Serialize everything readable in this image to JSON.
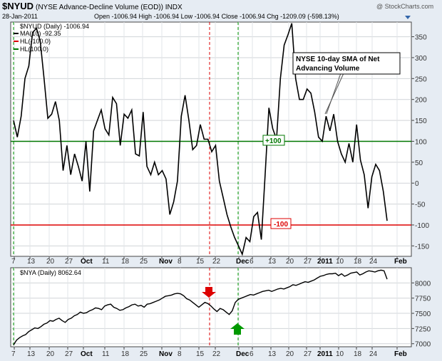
{
  "header": {
    "symbol": "$NYUD",
    "description": "(NYSE Advance-Decline Volume (EOD)) INDX",
    "watermark": "@ StockCharts.com",
    "date": "28-Jan-2011",
    "quote": "Open -1006.94 High -1006.94 Low -1006.94 Close -1006.94 Chg -1209.09 (-598.13%)"
  },
  "top_legend": {
    "main": "$NYUD (Daily) -1006.94",
    "ma": "MA(10) -92.35",
    "hl_red": "HL(-100.0)",
    "hl_green": "HL(100.0)"
  },
  "bottom_legend": {
    "main": "$NYA (Daily) 8062.64"
  },
  "annotation": {
    "line1": "NYSE 10-day SMA of Net",
    "line2": "Advancing Volume"
  },
  "labels": {
    "plus100": "+100",
    "minus100": "-100"
  },
  "colors": {
    "background": "#e6ecf3",
    "panel": "#ffffff",
    "series": "#000000",
    "hl_green": "#007700",
    "hl_red": "#dd0000",
    "arrow_red": "#dd0000",
    "arrow_green": "#009900"
  },
  "chart_data": [
    {
      "type": "line",
      "name": "$NYUD MA(10)",
      "ylim": [
        -175,
        385
      ],
      "yticks": [
        -150,
        -100,
        -50,
        0,
        50,
        100,
        150,
        200,
        250,
        300,
        350
      ],
      "hlines": [
        100,
        -100
      ],
      "y": [
        150,
        110,
        160,
        250,
        280,
        360,
        370,
        340,
        250,
        155,
        165,
        195,
        150,
        30,
        90,
        20,
        70,
        40,
        5,
        100,
        -20,
        125,
        150,
        175,
        130,
        115,
        205,
        190,
        90,
        165,
        155,
        175,
        70,
        65,
        170,
        40,
        20,
        50,
        20,
        30,
        10,
        -75,
        -45,
        5,
        160,
        210,
        150,
        80,
        90,
        140,
        105,
        105,
        75,
        90,
        5,
        -35,
        -75,
        -105,
        -130,
        -150,
        -170,
        -130,
        -140,
        -80,
        -70,
        -135,
        20,
        180,
        130,
        105,
        250,
        330,
        355,
        382,
        250,
        200,
        200,
        225,
        215,
        170,
        110,
        100,
        160,
        125,
        165,
        100,
        70,
        50,
        95,
        50,
        140,
        55,
        20,
        -60,
        15,
        45,
        30,
        -20,
        -90
      ]
    },
    {
      "type": "line",
      "name": "$NYA (Daily)",
      "ylim": [
        6950,
        8250
      ],
      "yticks": [
        7000,
        7250,
        7500,
        7750,
        8000
      ],
      "y": [
        6980,
        7060,
        7100,
        7130,
        7150,
        7200,
        7230,
        7260,
        7250,
        7280,
        7320,
        7340,
        7380,
        7370,
        7400,
        7420,
        7380,
        7350,
        7400,
        7420,
        7460,
        7480,
        7520,
        7500,
        7510,
        7540,
        7560,
        7590,
        7580,
        7560,
        7620,
        7640,
        7650,
        7600,
        7580,
        7550,
        7560,
        7590,
        7610,
        7640,
        7650,
        7620,
        7630,
        7600,
        7650,
        7660,
        7680,
        7700,
        7720,
        7750,
        7780,
        7790,
        7800,
        7820,
        7830,
        7820,
        7790,
        7740,
        7720,
        7680,
        7640,
        7600,
        7640,
        7680,
        7660,
        7620,
        7570,
        7530,
        7580,
        7560,
        7520,
        7480,
        7540,
        7680,
        7730,
        7750,
        7770,
        7790,
        7810,
        7800,
        7820,
        7840,
        7860,
        7870,
        7880,
        7860,
        7880,
        7900,
        7910,
        7900,
        7920,
        7940,
        7970,
        7960,
        7980,
        8000,
        8020,
        8010,
        8030,
        8050,
        8080,
        8110,
        8120,
        8140,
        8150,
        8150,
        8160,
        8120,
        8150,
        8110,
        8130,
        8160,
        8170,
        8180,
        8130,
        8150,
        8180,
        8200,
        8190,
        8180,
        8200,
        8210,
        8200,
        8062
      ]
    }
  ],
  "x_ticks": [
    "7",
    "13",
    "20",
    "27",
    "Oct",
    "11",
    "18",
    "25",
    "Nov",
    "8",
    "15",
    "22",
    "Dec",
    "6",
    "13",
    "20",
    "27",
    "2011",
    "10",
    "18",
    "24",
    "Feb"
  ]
}
